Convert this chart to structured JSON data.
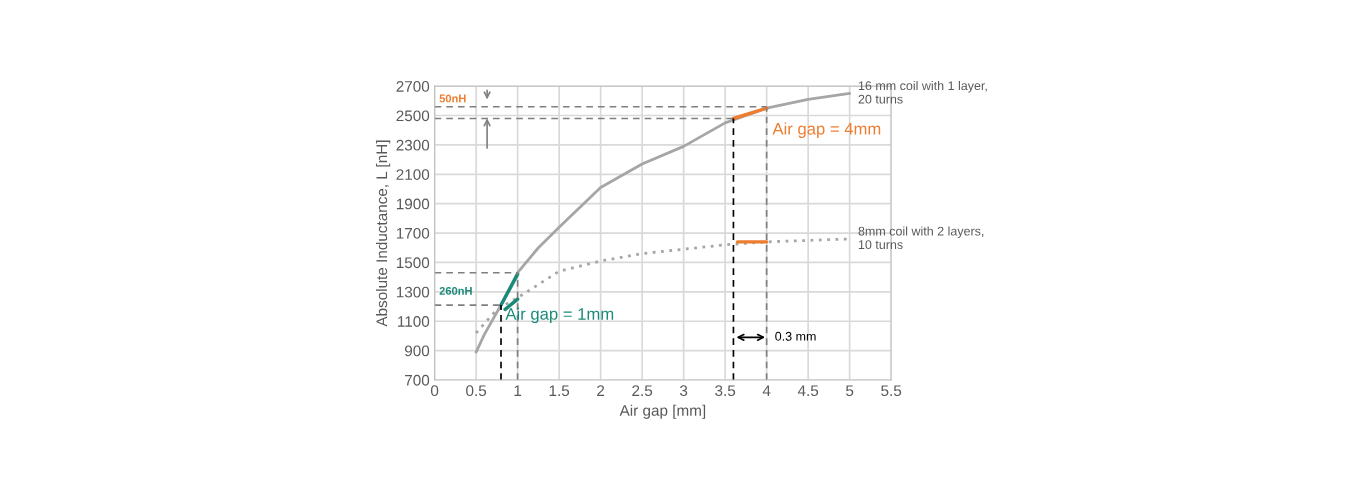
{
  "chart_data": {
    "type": "line",
    "xlabel": "Air gap [mm]",
    "ylabel": "Absolute Inductance, L [nH]",
    "xlim": [
      0,
      5.5
    ],
    "ylim": [
      700,
      2700
    ],
    "xticks": [
      0,
      0.5,
      1,
      1.5,
      2,
      2.5,
      3,
      3.5,
      4,
      4.5,
      5,
      5.5
    ],
    "yticks": [
      700,
      900,
      1100,
      1300,
      1500,
      1700,
      1900,
      2100,
      2300,
      2500,
      2700
    ],
    "grid": true,
    "legend": false,
    "marker": "none",
    "series": [
      {
        "name": "16 mm coil with 1 layer,\n20 turns",
        "color": "#a6a6a6",
        "line_style": "solid",
        "x": [
          0.5,
          0.6,
          0.8,
          1,
          1.25,
          1.5,
          2,
          2.5,
          3,
          3.5,
          4,
          4.5,
          5
        ],
        "values": [
          890,
          1010,
          1210,
          1430,
          1600,
          1740,
          2010,
          2170,
          2290,
          2450,
          2550,
          2610,
          2650
        ]
      },
      {
        "name": "8mm coil with 2 layers,\n10 turns",
        "color": "#a6a6a6",
        "line_style": "dotted",
        "x": [
          0.5,
          0.75,
          1,
          1.5,
          2,
          2.5,
          3,
          3.5,
          4,
          4.5,
          5
        ],
        "values": [
          1020,
          1180,
          1260,
          1440,
          1510,
          1560,
          1590,
          1620,
          1640,
          1650,
          1660
        ]
      },
      {
        "color": "#ed7d31",
        "line_style": "solid",
        "x": [
          3.6,
          4
        ],
        "values": [
          2480,
          2550
        ]
      },
      {
        "color": "#ed7d31",
        "line_style": "solid",
        "x": [
          3.65,
          4
        ],
        "values": [
          1640,
          1640
        ]
      },
      {
        "color": "#1a8a78",
        "line_style": "solid",
        "x": [
          0.8,
          1
        ],
        "values": [
          1210,
          1420
        ]
      },
      {
        "color": "#1a8a78",
        "line_style": "solid",
        "x": [
          0.85,
          1
        ],
        "values": [
          1180,
          1250
        ]
      },
      {
        "color": "#7f7f7f",
        "line_style": "dashed",
        "x": [
          0,
          4
        ],
        "values": [
          2560,
          2560
        ]
      },
      {
        "color": "#7f7f7f",
        "line_style": "dashed",
        "x": [
          0,
          3.6
        ],
        "values": [
          2480,
          2480
        ]
      },
      {
        "color": "#7f7f7f",
        "line_style": "dashed",
        "x": [
          0,
          1
        ],
        "values": [
          1430,
          1430
        ]
      },
      {
        "color": "#7f7f7f",
        "line_style": "dashed",
        "x": [
          0,
          0.8
        ],
        "values": [
          1210,
          1210
        ]
      },
      {
        "color": "#000000",
        "line_style": "dashed",
        "x": [
          0.8,
          0.8
        ],
        "values": [
          700,
          1210
        ]
      },
      {
        "color": "#7f7f7f",
        "line_style": "dashed",
        "x": [
          1,
          1
        ],
        "values": [
          700,
          1430
        ]
      },
      {
        "color": "#000000",
        "line_style": "dashed",
        "x": [
          3.6,
          3.6
        ],
        "values": [
          700,
          2480
        ]
      },
      {
        "color": "#7f7f7f",
        "line_style": "dashed",
        "x": [
          4,
          4
        ],
        "values": [
          700,
          2550
        ]
      }
    ],
    "annotations": [
      "50nH",
      "260nH",
      "Air gap = 1mm",
      "Air gap = 4mm",
      "0.3 mm"
    ]
  }
}
